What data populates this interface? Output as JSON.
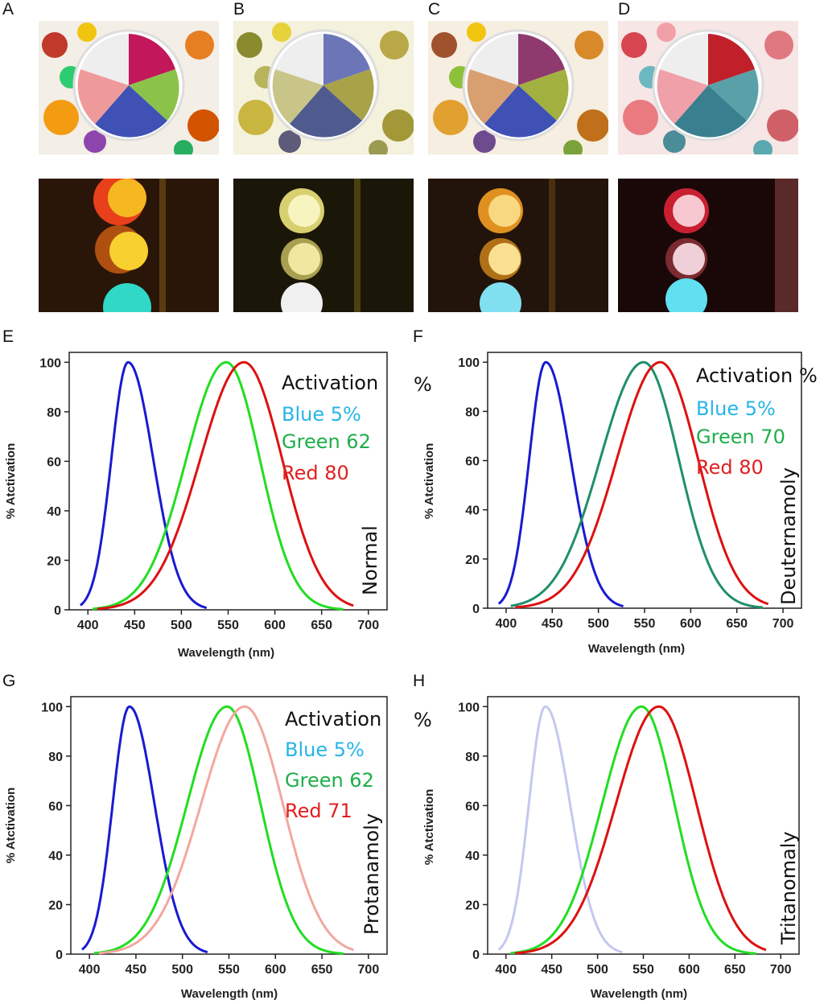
{
  "panels": {
    "A": "A",
    "B": "B",
    "C": "C",
    "D": "D",
    "E": "E",
    "F": "F",
    "G": "G",
    "H": "H"
  },
  "photos": {
    "row1": [
      "fruit bowl normal",
      "fruit bowl deuteranomaly",
      "fruit bowl protanomaly",
      "fruit bowl tritanomaly"
    ],
    "row2": [
      "traffic light normal",
      "traffic light deuteranomaly",
      "traffic light protanomaly",
      "traffic light tritanomaly"
    ]
  },
  "colors": {
    "blue": "#1a1ad0",
    "green": "#22dd22",
    "green_deut": "#1f8f6a",
    "red": "#dd1111",
    "red_prot": "#f2a8a0",
    "blue_trit": "#c4c8f0",
    "legend_blue": "#27b4e8",
    "legend_green": "#1fae4a",
    "legend_red": "#e02020"
  },
  "chart_data": [
    {
      "id": "E",
      "type": "line",
      "title": "",
      "xlabel": "Wavelength (nm)",
      "ylabel": "% Atctivation",
      "xlim": [
        380,
        720
      ],
      "ylim": [
        0,
        104
      ],
      "xticks": [
        400,
        450,
        500,
        550,
        600,
        650,
        700
      ],
      "yticks": [
        0,
        20,
        40,
        60,
        80,
        100
      ],
      "condition": "Normal",
      "legend": {
        "title": "Activation",
        "title_suffix": "",
        "blue": "Blue 5%",
        "green": "Green 62",
        "red": "Red  80"
      },
      "series": [
        {
          "name": "Blue",
          "peak": 443,
          "sigma_left": 18,
          "sigma_right": 27,
          "xmin": 392,
          "xmax": 527,
          "color": "#1a1ad0"
        },
        {
          "name": "Green",
          "peak": 548,
          "sigma_left": 43,
          "sigma_right": 36,
          "xmin": 405,
          "xmax": 673,
          "color": "#22dd22"
        },
        {
          "name": "Red",
          "peak": 567,
          "sigma_left": 47,
          "sigma_right": 41,
          "xmin": 410,
          "xmax": 684,
          "color": "#dd1111"
        }
      ]
    },
    {
      "id": "F",
      "type": "line",
      "title": "",
      "xlabel": "Wavelength (nm)",
      "ylabel": "% Atctivation",
      "xlim": [
        380,
        720
      ],
      "ylim": [
        0,
        104
      ],
      "xticks": [
        400,
        450,
        500,
        550,
        600,
        650,
        700
      ],
      "yticks": [
        0,
        20,
        40,
        60,
        80,
        100
      ],
      "condition": "Deuternamoly",
      "legend": {
        "title": "Activation",
        "title_suffix": "%",
        "blue": "Blue 5%",
        "green": "Green 70",
        "red": "Red  80"
      },
      "series": [
        {
          "name": "Blue",
          "peak": 443,
          "sigma_left": 18,
          "sigma_right": 27,
          "xmin": 392,
          "xmax": 527,
          "color": "#1a1ad0"
        },
        {
          "name": "Green",
          "peak": 549,
          "sigma_left": 47,
          "sigma_right": 38,
          "xmin": 405,
          "xmax": 678,
          "color": "#1f8f6a"
        },
        {
          "name": "Red",
          "peak": 567,
          "sigma_left": 47,
          "sigma_right": 41,
          "xmin": 410,
          "xmax": 684,
          "color": "#dd1111"
        }
      ]
    },
    {
      "id": "G",
      "type": "line",
      "title": "",
      "xlabel": "Wavelength (nm)",
      "ylabel": "% Atctivation",
      "xlim": [
        380,
        720
      ],
      "ylim": [
        0,
        104
      ],
      "xticks": [
        400,
        450,
        500,
        550,
        600,
        650,
        700
      ],
      "yticks": [
        0,
        20,
        40,
        60,
        80,
        100
      ],
      "condition": "Protanamoly",
      "legend": {
        "title": "Activation",
        "title_suffix": "",
        "blue": "Blue 5%",
        "green": "Green 62",
        "red": "Red  71"
      },
      "series": [
        {
          "name": "Blue",
          "peak": 443,
          "sigma_left": 18,
          "sigma_right": 27,
          "xmin": 392,
          "xmax": 527,
          "color": "#1a1ad0"
        },
        {
          "name": "Green",
          "peak": 548,
          "sigma_left": 43,
          "sigma_right": 36,
          "xmin": 405,
          "xmax": 673,
          "color": "#22dd22"
        },
        {
          "name": "Red",
          "peak": 567,
          "sigma_left": 47,
          "sigma_right": 41,
          "xmin": 410,
          "xmax": 684,
          "color": "#f2a8a0"
        }
      ]
    },
    {
      "id": "H",
      "type": "line",
      "title": "",
      "xlabel": "Wavelength (nm)",
      "ylabel": "% Atctivation",
      "xlim": [
        380,
        720
      ],
      "ylim": [
        0,
        104
      ],
      "xticks": [
        400,
        450,
        500,
        550,
        600,
        650,
        700
      ],
      "yticks": [
        0,
        20,
        40,
        60,
        80,
        100
      ],
      "condition": "Tritanomaly",
      "legend": {
        "title": "",
        "title_suffix": "%",
        "blue": "",
        "green": "",
        "red": ""
      },
      "series": [
        {
          "name": "Blue",
          "peak": 443,
          "sigma_left": 18,
          "sigma_right": 27,
          "xmin": 392,
          "xmax": 527,
          "color": "#c4c8f0"
        },
        {
          "name": "Green",
          "peak": 548,
          "sigma_left": 43,
          "sigma_right": 36,
          "xmin": 405,
          "xmax": 673,
          "color": "#22dd22"
        },
        {
          "name": "Red",
          "peak": 567,
          "sigma_left": 47,
          "sigma_right": 41,
          "xmin": 410,
          "xmax": 684,
          "color": "#dd1111"
        }
      ]
    }
  ]
}
